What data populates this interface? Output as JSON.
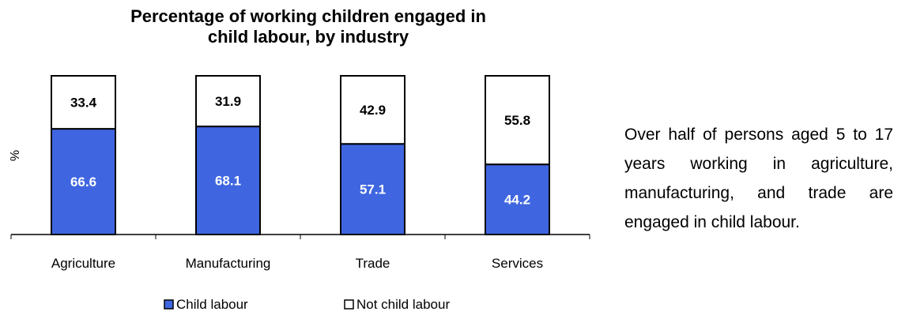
{
  "chart_data": {
    "type": "bar",
    "stacked": true,
    "percent": true,
    "title": [
      "Percentage of working children engaged in",
      "child labour, by industry"
    ],
    "xlabel": "",
    "ylabel": "%",
    "ylim": [
      0,
      100
    ],
    "grid": false,
    "legend": "bottom",
    "categories": [
      "Agriculture",
      "Manufacturing",
      "Trade",
      "Services"
    ],
    "series": [
      {
        "name": "Child labour",
        "values": [
          66.6,
          68.1,
          57.1,
          44.2
        ],
        "color": "#3f66e0",
        "label_color": "#ffffff"
      },
      {
        "name": "Not child labour",
        "values": [
          33.4,
          31.9,
          42.9,
          55.8
        ],
        "color": "#ffffff",
        "label_color": "#000000"
      }
    ]
  },
  "side_text": "Over half of persons aged 5 to 17 years working in agriculture, manufacturing, and trade are engaged in child labour."
}
